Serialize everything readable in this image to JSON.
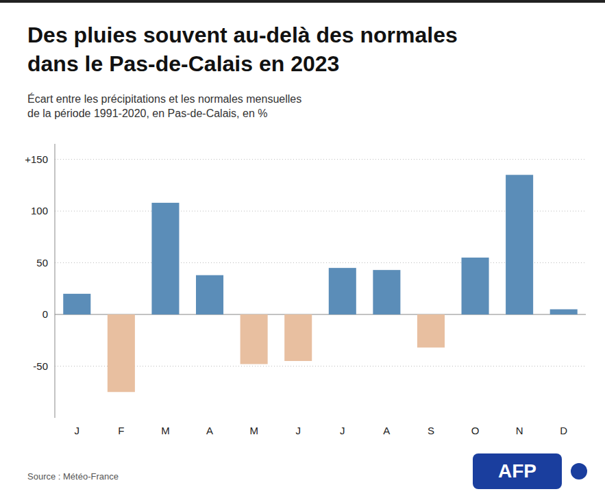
{
  "chart_data": {
    "type": "bar",
    "title": "Des pluies souvent au-delà des normales\ndans le Pas-de-Calais en 2023",
    "subtitle": "Écart entre les précipitations et les normales mensuelles\nde la période 1991-2020, en Pas-de-Calais, en %",
    "annotations": [
      "Source : Météo-France",
      "AFP"
    ],
    "categories": [
      "J",
      "F",
      "M",
      "A",
      "M",
      "J",
      "J",
      "A",
      "S",
      "O",
      "N",
      "D"
    ],
    "values": [
      20,
      -75,
      108,
      38,
      -48,
      -45,
      45,
      43,
      -32,
      55,
      135,
      5
    ],
    "colors": [
      "#5b8db8",
      "#e8bfa0",
      "#5b8db8",
      "#5b8db8",
      "#e8bfa0",
      "#e8bfa0",
      "#5b8db8",
      "#5b8db8",
      "#e8bfa0",
      "#5b8db8",
      "#5b8db8",
      "#5b8db8"
    ],
    "ylim": [
      -100,
      165
    ],
    "yticks": [
      -50,
      0,
      50,
      100,
      {
        "value": 150,
        "label": "+150"
      }
    ],
    "grid": true
  }
}
